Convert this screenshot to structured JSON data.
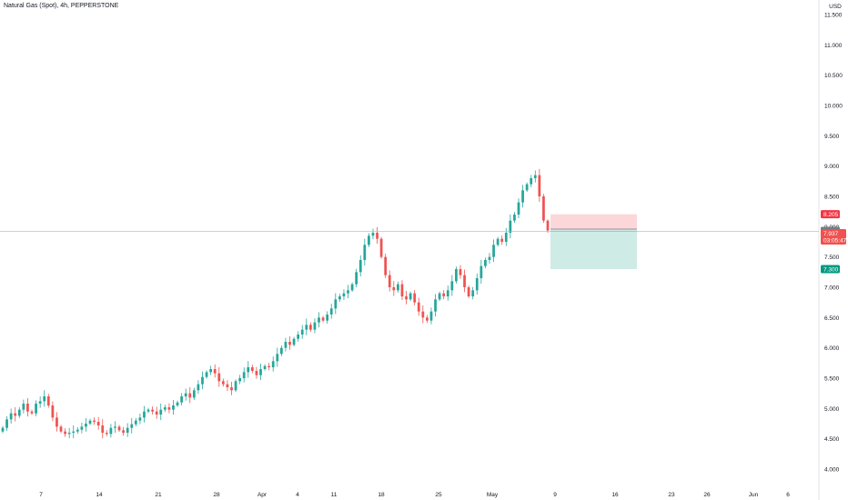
{
  "header": {
    "title": "Natural Gas (Spot), 4h, PEPPERSTONE"
  },
  "chart_data": {
    "type": "candlestick",
    "title": "Natural Gas (Spot), 4h, PEPPERSTONE",
    "currency": "USD",
    "ylim": [
      3.9,
      11.7
    ],
    "y_ticks": [
      "11.500",
      "11.000",
      "10.500",
      "10.000",
      "9.500",
      "9.000",
      "8.500",
      "8.000",
      "7.500",
      "7.000",
      "6.500",
      "6.000",
      "5.500",
      "5.000",
      "4.500",
      "4.000"
    ],
    "x_ticks": [
      "7",
      "14",
      "21",
      "28",
      "Apr",
      "4",
      "11",
      "18",
      "25",
      "May",
      "9",
      "16",
      "23",
      "26",
      "Jun",
      "6"
    ],
    "grid": false,
    "colors": {
      "up": "#26a69a",
      "down": "#ef5350"
    },
    "closes": [
      4.68,
      4.82,
      4.92,
      4.88,
      4.98,
      5.08,
      4.95,
      4.92,
      5.08,
      5.12,
      5.2,
      5.05,
      4.85,
      4.7,
      4.62,
      4.58,
      4.6,
      4.62,
      4.65,
      4.7,
      4.75,
      4.8,
      4.78,
      4.72,
      4.6,
      4.58,
      4.68,
      4.7,
      4.64,
      4.6,
      4.68,
      4.74,
      4.8,
      4.85,
      4.95,
      4.98,
      4.95,
      4.9,
      4.98,
      5.02,
      4.98,
      5.05,
      5.1,
      5.2,
      5.25,
      5.18,
      5.3,
      5.4,
      5.52,
      5.6,
      5.65,
      5.58,
      5.45,
      5.4,
      5.35,
      5.3,
      5.45,
      5.5,
      5.6,
      5.68,
      5.62,
      5.55,
      5.65,
      5.7,
      5.68,
      5.78,
      5.9,
      6.0,
      6.1,
      6.05,
      6.15,
      6.22,
      6.3,
      6.38,
      6.3,
      6.42,
      6.5,
      6.45,
      6.55,
      6.65,
      6.8,
      6.85,
      6.9,
      6.95,
      7.05,
      7.25,
      7.45,
      7.7,
      7.85,
      7.9,
      7.8,
      7.5,
      7.2,
      7.0,
      6.95,
      7.05,
      6.85,
      6.8,
      6.9,
      6.75,
      6.6,
      6.5,
      6.45,
      6.6,
      6.8,
      6.9,
      6.85,
      6.95,
      7.1,
      7.3,
      7.2,
      7.0,
      6.85,
      6.95,
      7.15,
      7.35,
      7.45,
      7.5,
      7.7,
      7.8,
      7.75,
      7.9,
      8.1,
      8.2,
      8.4,
      8.6,
      8.7,
      8.8,
      8.85,
      8.5,
      8.1,
      7.937
    ],
    "ohlc_last": {
      "open": 8.1,
      "high": 8.12,
      "low": 7.9,
      "close": 7.937
    },
    "last_price": "7.937",
    "countdown": "03:05:47",
    "price_labels": {
      "stop": "8.205",
      "line": "7.960",
      "target": "7.300"
    },
    "position": {
      "entry": 7.96,
      "stop": 8.205,
      "target": 7.3
    }
  }
}
